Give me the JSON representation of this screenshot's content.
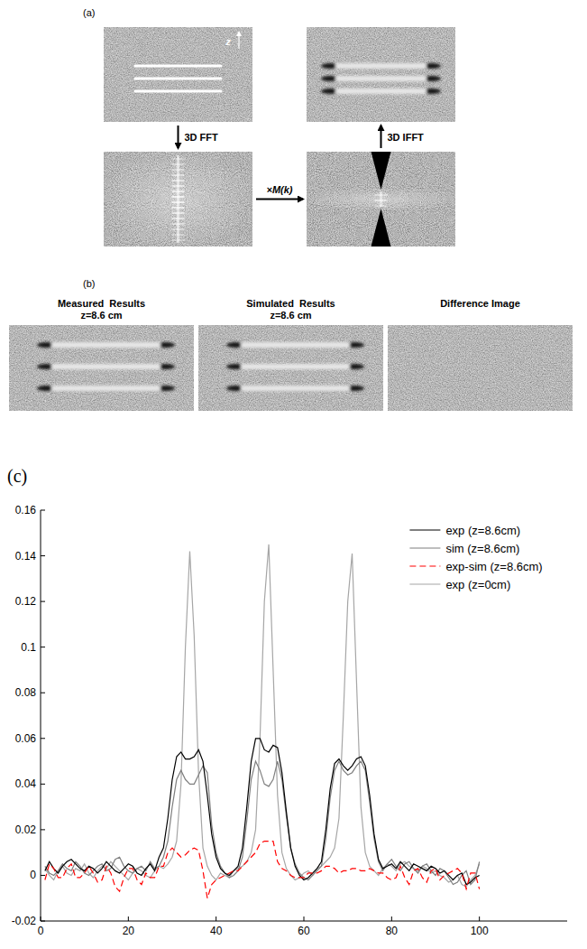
{
  "figure": {
    "panel_labels": [
      "(a)",
      "(b)",
      "(c)"
    ],
    "a": {
      "axis_label": "z",
      "steps": [
        "3D FFT",
        "×M(k)",
        "3D IFFT"
      ]
    },
    "b": {
      "titles": [
        [
          "Measured  Results",
          "z=8.6 cm"
        ],
        [
          "Simulated  Results",
          "z=8.6 cm"
        ],
        [
          "Difference Image"
        ]
      ]
    }
  },
  "chart_data": {
    "type": "line",
    "x": [
      1,
      2,
      3,
      4,
      5,
      6,
      7,
      8,
      9,
      10,
      11,
      12,
      13,
      14,
      15,
      16,
      17,
      18,
      19,
      20,
      21,
      22,
      23,
      24,
      25,
      26,
      27,
      28,
      29,
      30,
      31,
      32,
      33,
      34,
      35,
      36,
      37,
      38,
      39,
      40,
      41,
      42,
      43,
      44,
      45,
      46,
      47,
      48,
      49,
      50,
      51,
      52,
      53,
      54,
      55,
      56,
      57,
      58,
      59,
      60,
      61,
      62,
      63,
      64,
      65,
      66,
      67,
      68,
      69,
      70,
      71,
      72,
      73,
      74,
      75,
      76,
      77,
      78,
      79,
      80,
      81,
      82,
      83,
      84,
      85,
      86,
      87,
      88,
      89,
      90,
      91,
      92,
      93,
      94,
      95,
      96,
      97,
      98,
      99,
      100
    ],
    "series": [
      {
        "name": "exp (z=8.6cm)",
        "color": "#000000",
        "line_style": "solid",
        "values": [
          0.002,
          0.006,
          0.003,
          0.001,
          0.004,
          0.006,
          0.007,
          0.005,
          0.003,
          0.002,
          0.004,
          0.003,
          0.001,
          0.003,
          0.006,
          0.004,
          0.002,
          0.001,
          0.003,
          0.005,
          0.004,
          0.001,
          0.0,
          0.003,
          0.005,
          0.002,
          0.008,
          0.012,
          0.025,
          0.042,
          0.052,
          0.054,
          0.051,
          0.051,
          0.052,
          0.055,
          0.05,
          0.035,
          0.018,
          0.008,
          0.003,
          0.001,
          0.0,
          0.002,
          0.004,
          0.012,
          0.03,
          0.05,
          0.06,
          0.06,
          0.055,
          0.054,
          0.057,
          0.056,
          0.045,
          0.028,
          0.012,
          0.004,
          0.0,
          -0.002,
          -0.001,
          0.001,
          0.003,
          0.006,
          0.02,
          0.038,
          0.049,
          0.051,
          0.048,
          0.046,
          0.048,
          0.051,
          0.052,
          0.048,
          0.035,
          0.018,
          0.007,
          0.003,
          0.004,
          0.005,
          0.003,
          0.006,
          0.004,
          0.002,
          0.005,
          0.004,
          0.003,
          0.002,
          0.004,
          0.003,
          0.001,
          0.002,
          0.0,
          -0.002,
          0.0,
          0.001,
          -0.004,
          -0.003,
          -0.001,
          0.0
        ]
      },
      {
        "name": "sim (z=8.6cm)",
        "color": "#7f7f7f",
        "line_style": "solid",
        "values": [
          0.004,
          0.001,
          0.0,
          0.002,
          0.005,
          0.003,
          0.002,
          0.006,
          0.004,
          0.001,
          0.0,
          0.002,
          0.004,
          0.005,
          0.002,
          0.003,
          0.007,
          0.008,
          0.004,
          0.002,
          0.001,
          0.003,
          0.004,
          0.002,
          0.006,
          0.003,
          0.004,
          0.008,
          0.015,
          0.03,
          0.042,
          0.046,
          0.042,
          0.04,
          0.04,
          0.044,
          0.048,
          0.045,
          0.022,
          0.01,
          0.004,
          0.001,
          -0.001,
          0.0,
          0.002,
          0.008,
          0.024,
          0.042,
          0.05,
          0.046,
          0.04,
          0.039,
          0.042,
          0.05,
          0.042,
          0.026,
          0.012,
          0.005,
          0.001,
          -0.001,
          -0.002,
          0.0,
          0.002,
          0.004,
          0.016,
          0.034,
          0.046,
          0.05,
          0.046,
          0.044,
          0.045,
          0.048,
          0.05,
          0.046,
          0.032,
          0.016,
          0.006,
          0.002,
          0.005,
          0.007,
          0.004,
          0.002,
          0.005,
          0.006,
          0.003,
          0.001,
          0.004,
          0.005,
          0.002,
          0.0,
          0.003,
          0.002,
          -0.001,
          -0.004,
          -0.003,
          0.0,
          0.002,
          -0.004,
          -0.002,
          0.006
        ]
      },
      {
        "name": "exp-sim (z=8.6cm)",
        "color": "#ff0000",
        "line_style": "dashed",
        "values": [
          -0.002,
          0.005,
          0.003,
          -0.001,
          -0.001,
          0.003,
          0.005,
          -0.001,
          -0.001,
          0.001,
          0.004,
          0.001,
          -0.003,
          -0.002,
          0.004,
          0.001,
          -0.005,
          -0.007,
          -0.001,
          0.003,
          0.003,
          -0.002,
          -0.004,
          0.001,
          -0.001,
          -0.001,
          0.004,
          0.004,
          0.01,
          0.012,
          0.01,
          0.008,
          0.009,
          0.011,
          0.012,
          0.011,
          0.002,
          -0.01,
          -0.004,
          -0.002,
          -0.001,
          0.0,
          0.001,
          0.002,
          0.002,
          0.004,
          0.006,
          0.008,
          0.01,
          0.014,
          0.015,
          0.015,
          0.015,
          0.006,
          0.003,
          0.002,
          0.0,
          -0.001,
          -0.001,
          -0.001,
          0.001,
          0.001,
          0.001,
          0.002,
          0.004,
          0.004,
          0.003,
          0.001,
          0.002,
          0.002,
          0.003,
          0.003,
          0.002,
          0.002,
          0.003,
          0.002,
          0.001,
          0.001,
          -0.001,
          -0.002,
          -0.001,
          0.004,
          -0.001,
          -0.004,
          0.002,
          0.003,
          -0.001,
          -0.003,
          0.002,
          0.003,
          -0.002,
          0.0,
          0.001,
          0.002,
          0.003,
          0.001,
          -0.006,
          0.001,
          0.001,
          -0.006
        ]
      },
      {
        "name": "exp (z=0cm)",
        "color": "#a6a6a6",
        "line_style": "solid",
        "values": [
          0.003,
          0.0,
          -0.002,
          0.002,
          0.004,
          0.001,
          0.0,
          0.003,
          0.002,
          0.005,
          0.001,
          -0.001,
          0.002,
          0.004,
          0.003,
          0.006,
          0.004,
          0.002,
          0.0,
          -0.002,
          0.001,
          0.003,
          0.002,
          0.0,
          -0.001,
          0.002,
          0.004,
          0.003,
          0.005,
          0.008,
          0.015,
          0.04,
          0.1,
          0.142,
          0.105,
          0.045,
          0.012,
          0.004,
          0.0,
          -0.002,
          0.001,
          0.0,
          -0.001,
          0.002,
          0.003,
          0.004,
          0.006,
          0.01,
          0.02,
          0.06,
          0.12,
          0.145,
          0.09,
          0.035,
          0.01,
          0.003,
          0.0,
          -0.002,
          -0.001,
          0.001,
          0.002,
          0.0,
          0.003,
          0.004,
          0.006,
          0.008,
          0.012,
          0.025,
          0.07,
          0.12,
          0.141,
          0.085,
          0.03,
          0.01,
          0.004,
          0.002,
          0.0,
          0.003,
          0.005,
          0.004,
          0.002,
          0.005,
          0.006,
          0.004,
          0.003,
          0.002,
          0.004,
          0.003,
          0.001,
          0.002,
          0.0,
          -0.001,
          -0.003,
          -0.002,
          0.0,
          -0.004,
          -0.005,
          -0.002,
          0.0,
          0.005
        ]
      }
    ],
    "xlim": [
      0,
      120
    ],
    "xticks": [
      0,
      20,
      40,
      60,
      80,
      100
    ],
    "ylim": [
      -0.02,
      0.16
    ],
    "yticks": [
      -0.02,
      0,
      0.02,
      0.04,
      0.06,
      0.08,
      0.1,
      0.12,
      0.14,
      0.16
    ],
    "grid": false,
    "legend": "upper right"
  }
}
